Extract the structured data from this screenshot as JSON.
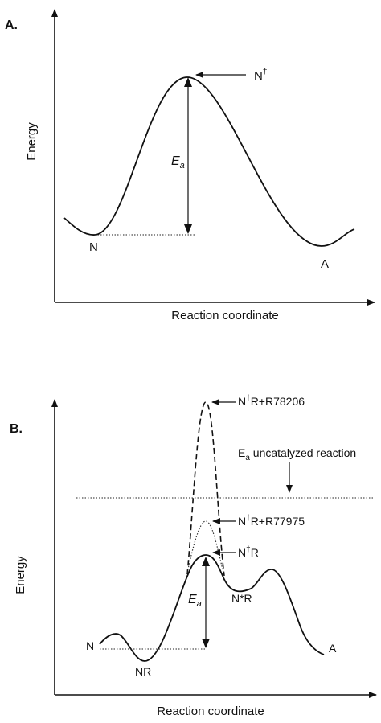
{
  "panel_a": {
    "tag": "A.",
    "y_label": "Energy",
    "x_label": "Reaction coordinate",
    "transition_state": "N",
    "transition_sup": "†",
    "ea": "E",
    "ea_sub": "a",
    "start_label": "N",
    "end_label": "A"
  },
  "panel_b": {
    "tag": "B.",
    "y_label": "Energy",
    "x_label": "Reaction coordinate",
    "top_peak": "N",
    "top_peak_sup": "†",
    "top_peak_rest": "R+R78206",
    "uncat_e": "E",
    "uncat_sub": "a",
    "uncat_rest": " uncatalyzed reaction",
    "mid_peak": "N",
    "mid_peak_sup": "†",
    "mid_peak_rest": "R+R77975",
    "low_peak": "N",
    "low_peak_sup": "†",
    "low_peak_rest": "R",
    "ea": "E",
    "ea_sub": "a",
    "intermediate": "N*R",
    "start_label": "N",
    "complex_label": "NR",
    "end_label": "A"
  }
}
